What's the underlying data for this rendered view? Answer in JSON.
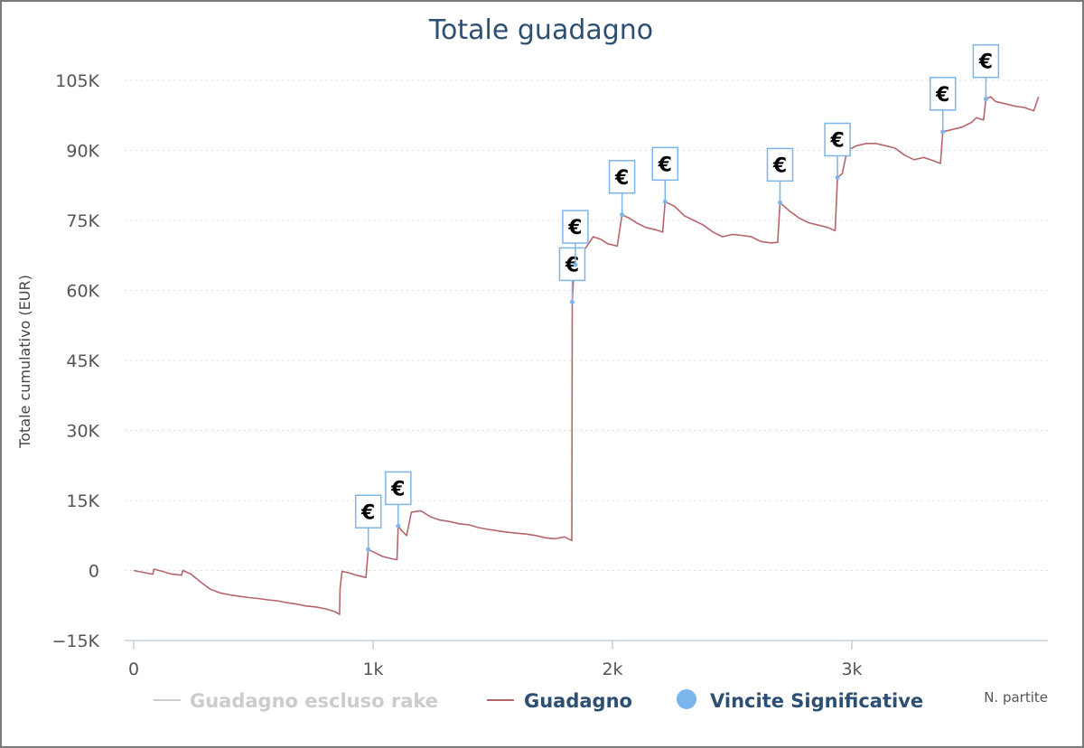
{
  "chart_data": {
    "type": "line",
    "title": "Totale guadagno",
    "ylabel": "Totale cumulativo (EUR)",
    "xlabel": "N. partite",
    "xlim": [
      0,
      3800
    ],
    "ylim": [
      -15000,
      105000
    ],
    "y_ticks": [
      {
        "value": -15000,
        "label": "−15K"
      },
      {
        "value": 0,
        "label": "0"
      },
      {
        "value": 15000,
        "label": "15K"
      },
      {
        "value": 30000,
        "label": "30K"
      },
      {
        "value": 45000,
        "label": "45K"
      },
      {
        "value": 60000,
        "label": "60K"
      },
      {
        "value": 75000,
        "label": "75K"
      },
      {
        "value": 90000,
        "label": "90K"
      },
      {
        "value": 105000,
        "label": "105K"
      }
    ],
    "x_ticks": [
      {
        "value": 0,
        "label": "0"
      },
      {
        "value": 1000,
        "label": "1k"
      },
      {
        "value": 2000,
        "label": "2k"
      },
      {
        "value": 3000,
        "label": "3k"
      }
    ],
    "grid": "horizontal dotted",
    "legend_position": "bottom",
    "legend": [
      {
        "label": "Guadagno escluso rake",
        "symbol": "line",
        "color": "#cccccc",
        "visible": false
      },
      {
        "label": "Guadagno",
        "symbol": "line",
        "color": "#b5666b",
        "visible": true
      },
      {
        "label": "Vincite Significative",
        "symbol": "circle",
        "color": "#7cb5ec",
        "visible": true
      }
    ],
    "series": [
      {
        "name": "Guadagno",
        "color": "#b5666b",
        "points": [
          [
            0,
            0
          ],
          [
            40,
            -400
          ],
          [
            80,
            -800
          ],
          [
            85,
            300
          ],
          [
            120,
            -200
          ],
          [
            160,
            -800
          ],
          [
            200,
            -1000
          ],
          [
            205,
            0
          ],
          [
            240,
            -800
          ],
          [
            280,
            -2500
          ],
          [
            320,
            -4000
          ],
          [
            360,
            -4800
          ],
          [
            400,
            -5200
          ],
          [
            440,
            -5500
          ],
          [
            480,
            -5800
          ],
          [
            520,
            -6000
          ],
          [
            560,
            -6300
          ],
          [
            600,
            -6500
          ],
          [
            640,
            -6900
          ],
          [
            680,
            -7200
          ],
          [
            720,
            -7600
          ],
          [
            760,
            -7800
          ],
          [
            800,
            -8200
          ],
          [
            840,
            -8800
          ],
          [
            860,
            -9400
          ],
          [
            862,
            -4000
          ],
          [
            870,
            -200
          ],
          [
            900,
            -500
          ],
          [
            930,
            -1000
          ],
          [
            970,
            -1500
          ],
          [
            980,
            4500
          ],
          [
            1000,
            4000
          ],
          [
            1040,
            3000
          ],
          [
            1080,
            2500
          ],
          [
            1100,
            2300
          ],
          [
            1105,
            9500
          ],
          [
            1120,
            8500
          ],
          [
            1140,
            7500
          ],
          [
            1160,
            12500
          ],
          [
            1200,
            12800
          ],
          [
            1240,
            11500
          ],
          [
            1280,
            10800
          ],
          [
            1320,
            10500
          ],
          [
            1360,
            10000
          ],
          [
            1400,
            9800
          ],
          [
            1440,
            9200
          ],
          [
            1480,
            8800
          ],
          [
            1520,
            8500
          ],
          [
            1560,
            8200
          ],
          [
            1600,
            8000
          ],
          [
            1640,
            7800
          ],
          [
            1680,
            7500
          ],
          [
            1720,
            7000
          ],
          [
            1760,
            6800
          ],
          [
            1800,
            7200
          ],
          [
            1830,
            6400
          ],
          [
            1832,
            57500
          ],
          [
            1840,
            65000
          ],
          [
            1860,
            67500
          ],
          [
            1880,
            68500
          ],
          [
            1900,
            70000
          ],
          [
            1920,
            71500
          ],
          [
            1950,
            71000
          ],
          [
            1980,
            70000
          ],
          [
            2020,
            69500
          ],
          [
            2040,
            76200
          ],
          [
            2070,
            75500
          ],
          [
            2100,
            74500
          ],
          [
            2140,
            73500
          ],
          [
            2180,
            73000
          ],
          [
            2210,
            72500
          ],
          [
            2220,
            79000
          ],
          [
            2260,
            78000
          ],
          [
            2300,
            76000
          ],
          [
            2340,
            75000
          ],
          [
            2380,
            74000
          ],
          [
            2420,
            72500
          ],
          [
            2460,
            71500
          ],
          [
            2500,
            72000
          ],
          [
            2540,
            71800
          ],
          [
            2580,
            71500
          ],
          [
            2620,
            70500
          ],
          [
            2660,
            70200
          ],
          [
            2690,
            70300
          ],
          [
            2700,
            78800
          ],
          [
            2740,
            77000
          ],
          [
            2780,
            75500
          ],
          [
            2820,
            74500
          ],
          [
            2860,
            74000
          ],
          [
            2900,
            73500
          ],
          [
            2930,
            72800
          ],
          [
            2940,
            84200
          ],
          [
            2960,
            85000
          ],
          [
            2980,
            90000
          ],
          [
            3020,
            91000
          ],
          [
            3060,
            91500
          ],
          [
            3100,
            91500
          ],
          [
            3140,
            91000
          ],
          [
            3180,
            90500
          ],
          [
            3220,
            89000
          ],
          [
            3260,
            88000
          ],
          [
            3300,
            88500
          ],
          [
            3340,
            87800
          ],
          [
            3370,
            87200
          ],
          [
            3380,
            94000
          ],
          [
            3420,
            94500
          ],
          [
            3460,
            95000
          ],
          [
            3500,
            96000
          ],
          [
            3520,
            97000
          ],
          [
            3550,
            96500
          ],
          [
            3560,
            101000
          ],
          [
            3580,
            101500
          ],
          [
            3600,
            100500
          ],
          [
            3640,
            100000
          ],
          [
            3680,
            99500
          ],
          [
            3720,
            99200
          ],
          [
            3760,
            98500
          ],
          [
            3780,
            101500
          ]
        ]
      },
      {
        "name": "Vincite Significative",
        "color": "#7cb5ec",
        "marker": "€",
        "points": [
          [
            980,
            4500
          ],
          [
            1105,
            9500
          ],
          [
            1832,
            57500
          ],
          [
            1845,
            65500
          ],
          [
            2040,
            76200
          ],
          [
            2220,
            79000
          ],
          [
            2700,
            78800
          ],
          [
            2940,
            84200
          ],
          [
            3380,
            94000
          ],
          [
            3560,
            101000
          ]
        ]
      }
    ]
  }
}
